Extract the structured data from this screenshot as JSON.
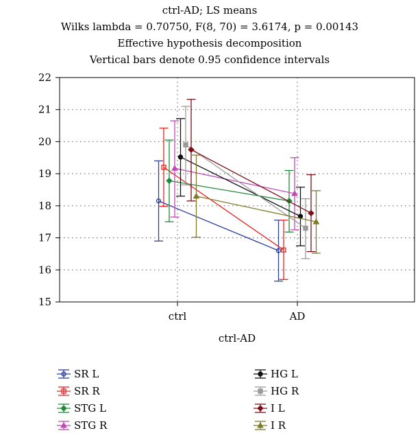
{
  "chart_data": {
    "type": "line",
    "title_lines": [
      "ctrl-AD; LS means",
      "Wilks lambda = 0.70750,  F(8, 70) = 3.6174,  p = 0.00143",
      "Effective hypothesis decomposition",
      "Vertical bars denote 0.95 confidence intervals"
    ],
    "xlabel": "ctrl-AD",
    "ylabel": "",
    "categories": [
      "ctrl",
      "AD"
    ],
    "ylim": [
      15,
      22
    ],
    "yticks": [
      15,
      16,
      17,
      18,
      19,
      20,
      21,
      22
    ],
    "grid": true,
    "legend_position": "bottom",
    "series": [
      {
        "name": "SR L",
        "color": "#2b3f9e",
        "marker": "circle",
        "offset": -0.55,
        "values": [
          18.15,
          16.6
        ],
        "ci_low": [
          16.9,
          15.65
        ],
        "ci_high": [
          19.4,
          17.55
        ]
      },
      {
        "name": "SR R",
        "color": "#e8201f",
        "marker": "square",
        "offset": -0.4,
        "values": [
          19.2,
          16.62
        ],
        "ci_low": [
          17.98,
          15.7
        ],
        "ci_high": [
          20.42,
          17.55
        ]
      },
      {
        "name": "STG L",
        "color": "#1f8a3a",
        "marker": "diamond",
        "offset": -0.24,
        "values": [
          18.78,
          18.15
        ],
        "ci_low": [
          17.5,
          17.18
        ],
        "ci_high": [
          20.05,
          19.1
        ]
      },
      {
        "name": "STG R",
        "color": "#c447b3",
        "marker": "triangle",
        "offset": -0.08,
        "values": [
          19.17,
          18.38
        ],
        "ci_low": [
          17.65,
          17.25
        ],
        "ci_high": [
          20.65,
          19.5
        ]
      },
      {
        "name": "HG L",
        "color": "#111111",
        "marker": "circle",
        "offset": 0.09,
        "values": [
          19.52,
          17.67
        ],
        "ci_low": [
          18.3,
          16.75
        ],
        "ci_high": [
          20.72,
          18.58
        ]
      },
      {
        "name": "HG R",
        "color": "#9a9a9a",
        "marker": "square",
        "offset": 0.24,
        "values": [
          19.9,
          17.3
        ],
        "ci_low": [
          18.65,
          16.35
        ],
        "ci_high": [
          21.1,
          18.22
        ]
      },
      {
        "name": "I L",
        "color": "#7a1018",
        "marker": "diamond",
        "offset": 0.4,
        "values": [
          19.75,
          17.77
        ],
        "ci_low": [
          18.15,
          16.57
        ],
        "ci_high": [
          21.32,
          18.97
        ]
      },
      {
        "name": "I R",
        "color": "#7f7a2a",
        "marker": "triangle",
        "offset": 0.55,
        "values": [
          18.3,
          17.5
        ],
        "ci_low": [
          17.02,
          16.52
        ],
        "ci_high": [
          19.58,
          18.47
        ]
      }
    ]
  }
}
